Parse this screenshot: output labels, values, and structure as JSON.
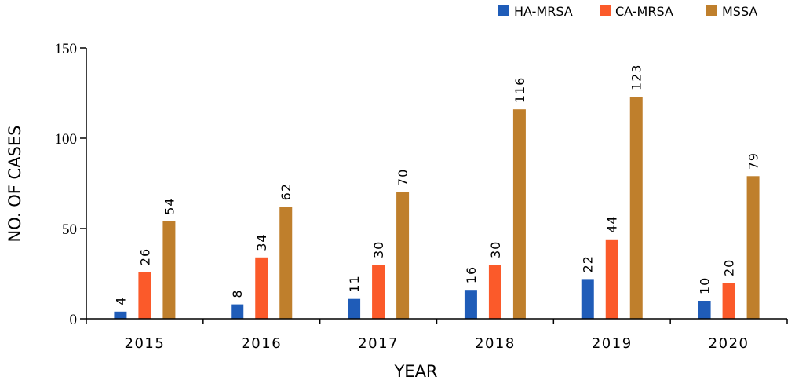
{
  "chart_data": {
    "type": "bar",
    "title": "",
    "xlabel": "YEAR",
    "ylabel": "NO. OF CASES",
    "categories": [
      "2015",
      "2016",
      "2017",
      "2018",
      "2019",
      "2020"
    ],
    "ylim": [
      0,
      150
    ],
    "yticks": [
      0,
      50,
      100,
      150
    ],
    "legend_position": "top-right",
    "grid": false,
    "series": [
      {
        "name": "HA-MRSA",
        "color": "#1f5cb8",
        "values": [
          4,
          8,
          11,
          16,
          22,
          10
        ]
      },
      {
        "name": "CA-MRSA",
        "color": "#fb5a2a",
        "values": [
          26,
          34,
          30,
          30,
          44,
          20
        ]
      },
      {
        "name": "MSSA",
        "color": "#bf7f2c",
        "values": [
          54,
          62,
          70,
          116,
          123,
          79
        ]
      }
    ]
  }
}
